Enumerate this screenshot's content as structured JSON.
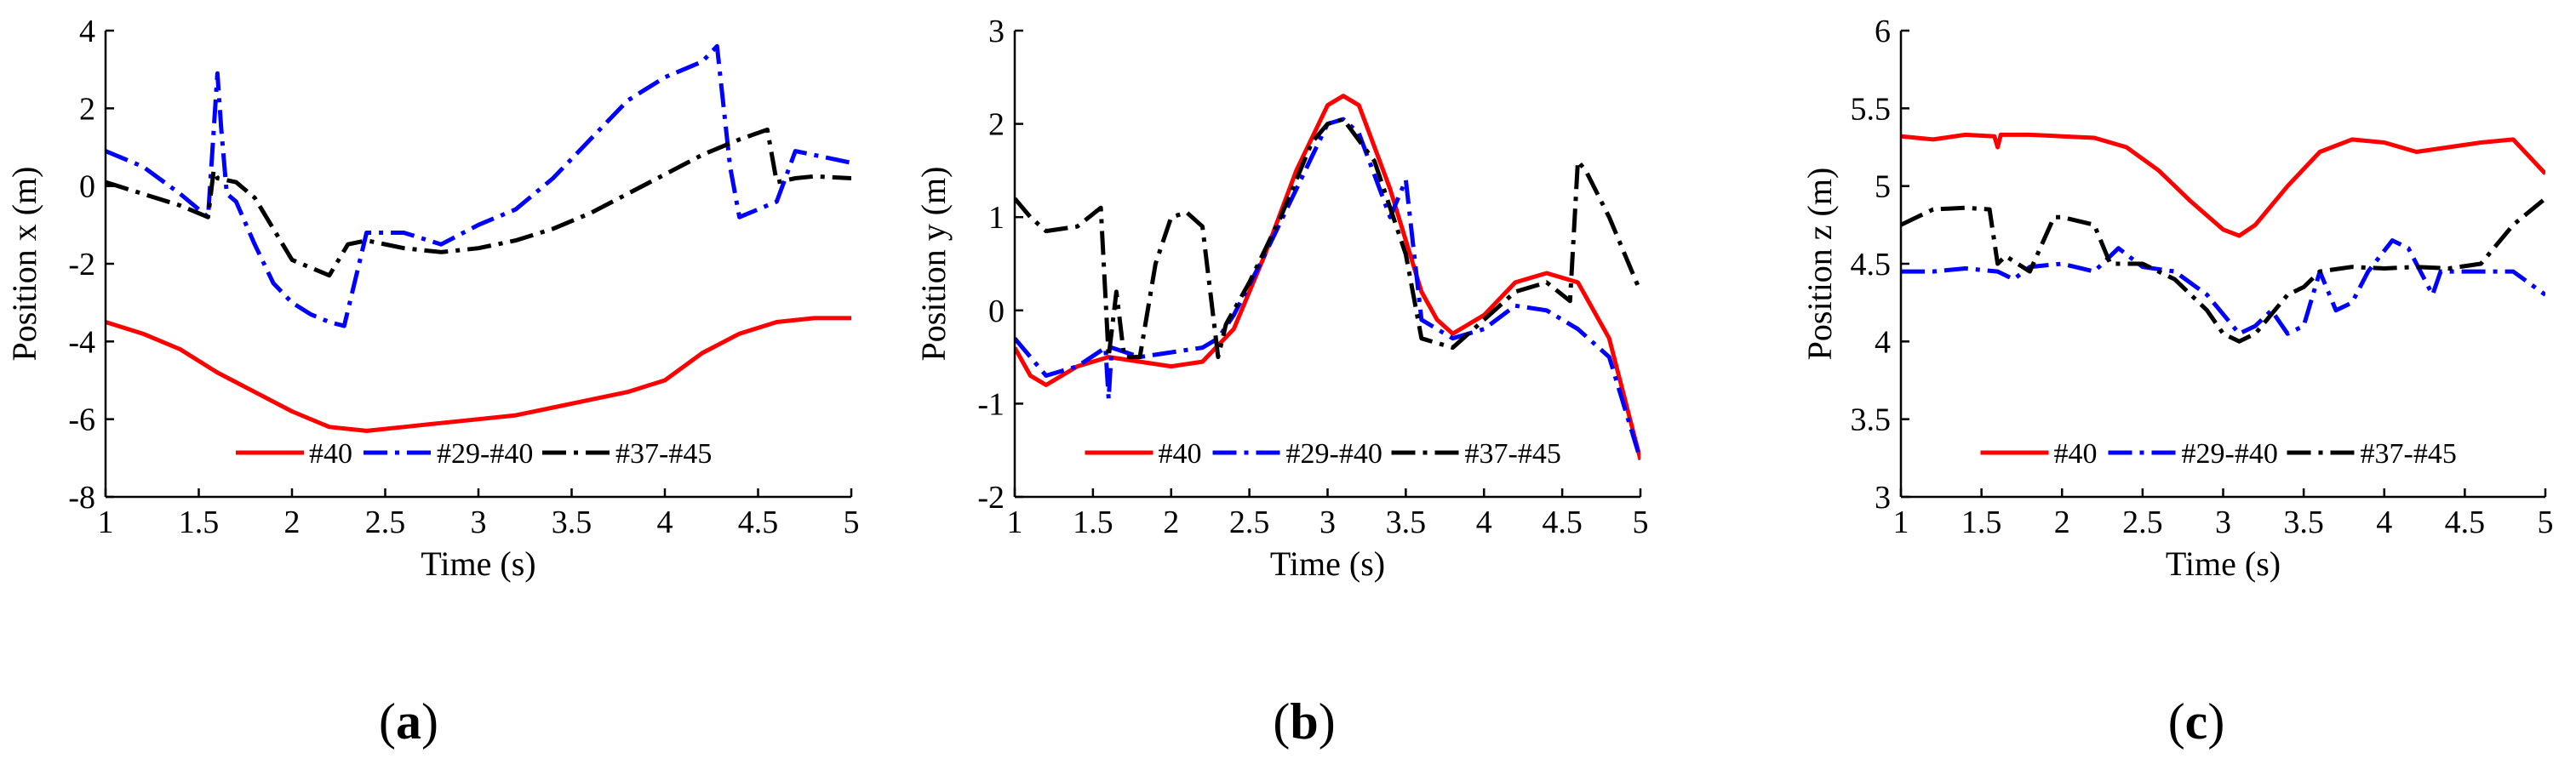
{
  "figure": {
    "colors": {
      "#40": "#ff0000",
      "#29-#40": "#0000ff",
      "#37-#45": "#000000"
    },
    "line_styles": {
      "#40": "solid",
      "#29-#40": "dash-dot",
      "#37-#45": "dash-dot"
    }
  },
  "chart_data": [
    {
      "type": "line",
      "panel_label": "a",
      "xlabel": "Time (s)",
      "ylabel": "Position x (m)",
      "xlim": [
        1,
        5
      ],
      "ylim": [
        -8,
        4
      ],
      "xticks": [
        1,
        1.5,
        2,
        2.5,
        3,
        3.5,
        4,
        4.5,
        5
      ],
      "yticks": [
        -8,
        -6,
        -4,
        -2,
        0,
        2,
        4
      ],
      "xtick_labels": [
        "1",
        "1.5",
        "2",
        "2.5",
        "3",
        "3.5",
        "4",
        "4.5",
        "5"
      ],
      "ytick_labels": [
        "-8",
        "-6",
        "-4",
        "-2",
        "0",
        "2",
        "4"
      ],
      "legend": [
        "#40",
        "#29-#40",
        "#37-#45"
      ],
      "series": [
        {
          "name": "#40",
          "x": [
            1,
            1.2,
            1.4,
            1.6,
            1.8,
            2,
            2.2,
            2.4,
            2.6,
            2.8,
            3,
            3.2,
            3.4,
            3.6,
            3.8,
            4,
            4.2,
            4.4,
            4.6,
            4.8,
            5
          ],
          "y": [
            -3.5,
            -3.8,
            -4.2,
            -4.8,
            -5.3,
            -5.8,
            -6.2,
            -6.3,
            -6.2,
            -6.1,
            -6.0,
            -5.9,
            -5.7,
            -5.5,
            -5.3,
            -5.0,
            -4.3,
            -3.8,
            -3.5,
            -3.4,
            -3.4
          ]
        },
        {
          "name": "#29-#40",
          "x": [
            1,
            1.2,
            1.4,
            1.55,
            1.6,
            1.62,
            1.65,
            1.7,
            1.8,
            1.9,
            2,
            2.1,
            2.2,
            2.28,
            2.4,
            2.6,
            2.8,
            3,
            3.2,
            3.4,
            3.6,
            3.8,
            4,
            4.2,
            4.28,
            4.35,
            4.4,
            4.6,
            4.7,
            4.8,
            5
          ],
          "y": [
            0.9,
            0.5,
            -0.2,
            -0.8,
            2.9,
            1.5,
            -0.2,
            -0.4,
            -1.5,
            -2.5,
            -3.0,
            -3.3,
            -3.5,
            -3.6,
            -1.2,
            -1.2,
            -1.5,
            -1.0,
            -0.6,
            0.2,
            1.2,
            2.2,
            2.8,
            3.2,
            3.6,
            0.5,
            -0.8,
            -0.4,
            0.9,
            0.8,
            0.6
          ]
        },
        {
          "name": "#37-#45",
          "x": [
            1,
            1.2,
            1.4,
            1.55,
            1.58,
            1.6,
            1.7,
            1.8,
            2,
            2.2,
            2.3,
            2.4,
            2.6,
            2.8,
            3,
            3.2,
            3.4,
            3.6,
            3.8,
            4,
            4.2,
            4.4,
            4.55,
            4.6,
            4.7,
            4.8,
            5
          ],
          "y": [
            0.1,
            -0.2,
            -0.5,
            -0.8,
            0.4,
            0.2,
            0.1,
            -0.3,
            -1.9,
            -2.3,
            -1.5,
            -1.4,
            -1.6,
            -1.7,
            -1.6,
            -1.4,
            -1.1,
            -0.7,
            -0.2,
            0.3,
            0.8,
            1.2,
            1.45,
            0.1,
            0.2,
            0.25,
            0.2
          ]
        }
      ]
    },
    {
      "type": "line",
      "panel_label": "b",
      "xlabel": "Time (s)",
      "ylabel": "Position y (m)",
      "xlim": [
        1,
        5
      ],
      "ylim": [
        -2,
        3
      ],
      "xticks": [
        1,
        1.5,
        2,
        2.5,
        3,
        3.5,
        4,
        4.5,
        5
      ],
      "yticks": [
        -2,
        -1,
        0,
        1,
        2,
        3
      ],
      "xtick_labels": [
        "1",
        "1.5",
        "2",
        "2.5",
        "3",
        "3.5",
        "4",
        "4.5",
        "5"
      ],
      "ytick_labels": [
        "-2",
        "-1",
        "0",
        "1",
        "2",
        "3"
      ],
      "legend": [
        "#40",
        "#29-#40",
        "#37-#45"
      ],
      "series": [
        {
          "name": "#40",
          "x": [
            1,
            1.1,
            1.2,
            1.4,
            1.6,
            1.8,
            2,
            2.2,
            2.4,
            2.6,
            2.8,
            3,
            3.1,
            3.2,
            3.4,
            3.6,
            3.7,
            3.8,
            4,
            4.2,
            4.4,
            4.6,
            4.8,
            5
          ],
          "y": [
            -0.4,
            -0.7,
            -0.8,
            -0.6,
            -0.5,
            -0.55,
            -0.6,
            -0.55,
            -0.2,
            0.6,
            1.5,
            2.2,
            2.3,
            2.2,
            1.3,
            0.2,
            -0.1,
            -0.25,
            -0.05,
            0.3,
            0.4,
            0.3,
            -0.3,
            -1.6
          ]
        },
        {
          "name": "#29-#40",
          "x": [
            1,
            1.2,
            1.4,
            1.58,
            1.6,
            1.62,
            1.8,
            2,
            2.2,
            2.3,
            2.4,
            2.6,
            2.8,
            3,
            3.1,
            3.2,
            3.4,
            3.5,
            3.6,
            3.8,
            4,
            4.2,
            4.4,
            4.6,
            4.8,
            5
          ],
          "y": [
            -0.3,
            -0.7,
            -0.6,
            -0.4,
            -0.95,
            -0.4,
            -0.5,
            -0.45,
            -0.4,
            -0.3,
            -0.05,
            0.6,
            1.3,
            2.0,
            2.05,
            1.9,
            1.0,
            1.4,
            -0.1,
            -0.3,
            -0.2,
            0.05,
            0.0,
            -0.2,
            -0.5,
            -1.6
          ]
        },
        {
          "name": "#37-#45",
          "x": [
            1,
            1.1,
            1.2,
            1.4,
            1.55,
            1.6,
            1.65,
            1.7,
            1.8,
            1.9,
            2,
            2.1,
            2.2,
            2.3,
            2.35,
            2.5,
            2.7,
            2.9,
            3,
            3.1,
            3.3,
            3.5,
            3.6,
            3.8,
            4,
            4.2,
            4.4,
            4.55,
            4.6,
            4.65,
            4.8,
            5
          ],
          "y": [
            1.2,
            1.0,
            0.85,
            0.9,
            1.1,
            -0.5,
            0.2,
            -0.5,
            -0.5,
            0.5,
            1.0,
            1.05,
            0.9,
            -0.5,
            -0.15,
            0.3,
            1.0,
            1.8,
            2.0,
            2.05,
            1.6,
            0.6,
            -0.3,
            -0.4,
            -0.1,
            0.2,
            0.3,
            0.1,
            1.6,
            1.5,
            1.0,
            0.2
          ]
        }
      ]
    },
    {
      "type": "line",
      "panel_label": "c",
      "xlabel": "Time (s)",
      "ylabel": "Position z (m)",
      "xlim": [
        1,
        5
      ],
      "ylim": [
        3,
        6
      ],
      "xticks": [
        1,
        1.5,
        2,
        2.5,
        3,
        3.5,
        4,
        4.5,
        5
      ],
      "yticks": [
        3,
        3.5,
        4,
        4.5,
        5,
        5.5,
        6
      ],
      "xtick_labels": [
        "1",
        "1.5",
        "2",
        "2.5",
        "3",
        "3.5",
        "4",
        "4.5",
        "5"
      ],
      "ytick_labels": [
        "3",
        "3.5",
        "4",
        "4.5",
        "5",
        "5.5",
        "6"
      ],
      "legend": [
        "#40",
        "#29-#40",
        "#37-#45"
      ],
      "series": [
        {
          "name": "#40",
          "x": [
            1,
            1.2,
            1.4,
            1.58,
            1.6,
            1.62,
            1.8,
            2,
            2.2,
            2.4,
            2.6,
            2.8,
            3,
            3.1,
            3.2,
            3.4,
            3.6,
            3.8,
            4,
            4.2,
            4.4,
            4.6,
            4.8,
            5
          ],
          "y": [
            5.32,
            5.3,
            5.33,
            5.32,
            5.25,
            5.33,
            5.33,
            5.32,
            5.31,
            5.25,
            5.1,
            4.9,
            4.72,
            4.68,
            4.75,
            5.0,
            5.22,
            5.3,
            5.28,
            5.22,
            5.25,
            5.28,
            5.3,
            5.08
          ]
        },
        {
          "name": "#29-#40",
          "x": [
            1,
            1.2,
            1.4,
            1.6,
            1.7,
            1.8,
            2,
            2.2,
            2.35,
            2.5,
            2.7,
            2.9,
            3.1,
            3.2,
            3.3,
            3.4,
            3.5,
            3.6,
            3.7,
            3.8,
            3.9,
            4.05,
            4.15,
            4.3,
            4.35,
            4.4,
            4.6,
            4.8,
            5
          ],
          "y": [
            4.45,
            4.45,
            4.47,
            4.45,
            4.4,
            4.48,
            4.5,
            4.45,
            4.6,
            4.48,
            4.45,
            4.3,
            4.05,
            4.1,
            4.2,
            4.05,
            4.1,
            4.45,
            4.2,
            4.25,
            4.45,
            4.65,
            4.6,
            4.3,
            4.45,
            4.45,
            4.45,
            4.45,
            4.3
          ]
        },
        {
          "name": "#37-#45",
          "x": [
            1,
            1.2,
            1.4,
            1.55,
            1.6,
            1.65,
            1.8,
            1.95,
            2,
            2.2,
            2.3,
            2.5,
            2.7,
            2.9,
            3,
            3.1,
            3.2,
            3.4,
            3.5,
            3.6,
            3.8,
            4,
            4.2,
            4.4,
            4.6,
            4.8,
            5
          ],
          "y": [
            4.75,
            4.85,
            4.86,
            4.85,
            4.5,
            4.55,
            4.45,
            4.8,
            4.8,
            4.75,
            4.5,
            4.5,
            4.4,
            4.2,
            4.05,
            4.0,
            4.05,
            4.3,
            4.35,
            4.45,
            4.48,
            4.47,
            4.48,
            4.47,
            4.5,
            4.75,
            4.92
          ]
        }
      ]
    }
  ]
}
